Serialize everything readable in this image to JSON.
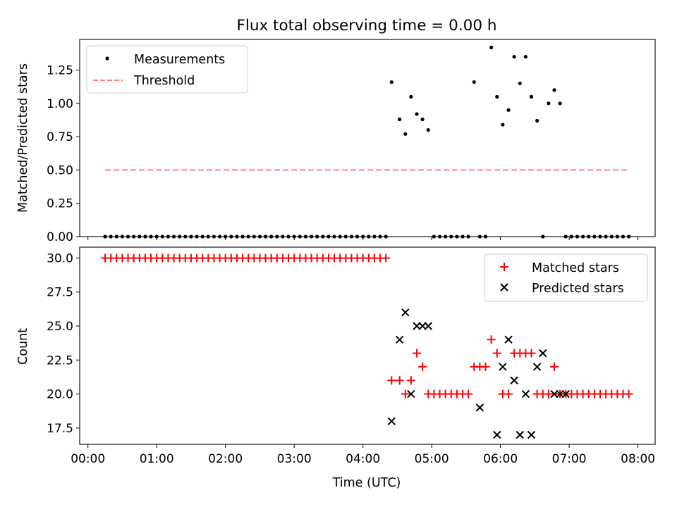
{
  "figure": {
    "title": "Flux total observing time = 0.00 h"
  },
  "chart_data": [
    {
      "type": "scatter",
      "xlabel": "",
      "ylabel": "Matched/Predicted stars",
      "ylim": [
        0,
        1.48
      ],
      "yticks": [
        0.0,
        0.25,
        0.5,
        0.75,
        1.0,
        1.25
      ],
      "ytick_labels": [
        "0.00",
        "0.25",
        "0.50",
        "0.75",
        "1.00",
        "1.25"
      ],
      "xlim_hours": [
        -0.12,
        8.25
      ],
      "xticks_hours": [
        0,
        1,
        2,
        3,
        4,
        5,
        6,
        7,
        8
      ],
      "xtick_labels": [
        "",
        "",
        "",
        "",
        "",
        "",
        "",
        "",
        ""
      ],
      "grid": false,
      "legend_position": "top-left",
      "series": [
        {
          "name": "Measurements",
          "kind": "points",
          "color": "#000000",
          "x": [
            "00:15",
            "00:20",
            "00:25",
            "00:30",
            "00:35",
            "00:40",
            "00:45",
            "00:50",
            "00:55",
            "01:00",
            "01:05",
            "01:10",
            "01:15",
            "01:20",
            "01:25",
            "01:30",
            "01:35",
            "01:40",
            "01:45",
            "01:50",
            "01:55",
            "02:00",
            "02:05",
            "02:10",
            "02:15",
            "02:20",
            "02:25",
            "02:30",
            "02:35",
            "02:40",
            "02:45",
            "02:50",
            "02:55",
            "03:00",
            "03:05",
            "03:10",
            "03:15",
            "03:20",
            "03:25",
            "03:30",
            "03:35",
            "03:40",
            "03:45",
            "03:50",
            "03:55",
            "04:00",
            "04:05",
            "04:10",
            "04:15",
            "04:20",
            "04:25",
            "04:32",
            "04:37",
            "04:42",
            "04:47",
            "04:52",
            "04:57",
            "05:02",
            "05:07",
            "05:12",
            "05:17",
            "05:22",
            "05:27",
            "05:32",
            "05:37",
            "05:42",
            "05:47",
            "05:52",
            "05:57",
            "06:02",
            "06:07",
            "06:12",
            "06:17",
            "06:22",
            "06:27",
            "06:32",
            "06:37",
            "06:42",
            "06:47",
            "06:52",
            "06:57",
            "07:02",
            "07:07",
            "07:12",
            "07:17",
            "07:22",
            "07:27",
            "07:32",
            "07:37",
            "07:42",
            "07:47",
            "07:52"
          ],
          "y": [
            0,
            0,
            0,
            0,
            0,
            0,
            0,
            0,
            0,
            0,
            0,
            0,
            0,
            0,
            0,
            0,
            0,
            0,
            0,
            0,
            0,
            0,
            0,
            0,
            0,
            0,
            0,
            0,
            0,
            0,
            0,
            0,
            0,
            0,
            0,
            0,
            0,
            0,
            0,
            0,
            0,
            0,
            0,
            0,
            0,
            0,
            0,
            0,
            0,
            0,
            1.16,
            0.88,
            0.77,
            1.05,
            0.92,
            0.88,
            0.8,
            0,
            0,
            0,
            0,
            0,
            0,
            0,
            1.16,
            0,
            0,
            1.42,
            1.05,
            0.84,
            0.95,
            1.35,
            1.15,
            1.35,
            1.05,
            0.87,
            0,
            1.0,
            1.1,
            1.0,
            0,
            0,
            0,
            0,
            0,
            0,
            0,
            0,
            0,
            0,
            0,
            0
          ]
        },
        {
          "name": "Threshold",
          "kind": "dashed-line",
          "color": "#ff8080",
          "x": [
            "00:15",
            "07:52"
          ],
          "y": [
            0.5,
            0.5
          ]
        }
      ]
    },
    {
      "type": "scatter",
      "xlabel": "Time (UTC)",
      "ylabel": "Count",
      "ylim": [
        16.3,
        30.8
      ],
      "yticks": [
        17.5,
        20.0,
        22.5,
        25.0,
        27.5,
        30.0
      ],
      "ytick_labels": [
        "17.5",
        "20.0",
        "22.5",
        "25.0",
        "27.5",
        "30.0"
      ],
      "xlim_hours": [
        -0.12,
        8.25
      ],
      "xticks_hours": [
        0,
        1,
        2,
        3,
        4,
        5,
        6,
        7,
        8
      ],
      "xtick_labels": [
        "00:00",
        "01:00",
        "02:00",
        "03:00",
        "04:00",
        "05:00",
        "06:00",
        "07:00",
        "08:00"
      ],
      "grid": false,
      "legend_position": "top-right",
      "series": [
        {
          "name": "Matched stars",
          "marker": "plus",
          "color": "#ff0000",
          "x": [
            "00:15",
            "00:20",
            "00:25",
            "00:30",
            "00:35",
            "00:40",
            "00:45",
            "00:50",
            "00:55",
            "01:00",
            "01:05",
            "01:10",
            "01:15",
            "01:20",
            "01:25",
            "01:30",
            "01:35",
            "01:40",
            "01:45",
            "01:50",
            "01:55",
            "02:00",
            "02:05",
            "02:10",
            "02:15",
            "02:20",
            "02:25",
            "02:30",
            "02:35",
            "02:40",
            "02:45",
            "02:50",
            "02:55",
            "03:00",
            "03:05",
            "03:10",
            "03:15",
            "03:20",
            "03:25",
            "03:30",
            "03:35",
            "03:40",
            "03:45",
            "03:50",
            "03:55",
            "04:00",
            "04:05",
            "04:10",
            "04:15",
            "04:20",
            "04:25",
            "04:32",
            "04:37",
            "04:42",
            "04:47",
            "04:52",
            "04:57",
            "05:02",
            "05:07",
            "05:12",
            "05:17",
            "05:22",
            "05:27",
            "05:32",
            "05:37",
            "05:42",
            "05:47",
            "05:52",
            "05:57",
            "06:02",
            "06:07",
            "06:12",
            "06:17",
            "06:22",
            "06:27",
            "06:32",
            "06:37",
            "06:42",
            "06:47",
            "06:52",
            "06:57",
            "07:02",
            "07:07",
            "07:12",
            "07:17",
            "07:22",
            "07:27",
            "07:32",
            "07:37",
            "07:42",
            "07:47",
            "07:52"
          ],
          "y": [
            30,
            30,
            30,
            30,
            30,
            30,
            30,
            30,
            30,
            30,
            30,
            30,
            30,
            30,
            30,
            30,
            30,
            30,
            30,
            30,
            30,
            30,
            30,
            30,
            30,
            30,
            30,
            30,
            30,
            30,
            30,
            30,
            30,
            30,
            30,
            30,
            30,
            30,
            30,
            30,
            30,
            30,
            30,
            30,
            30,
            30,
            30,
            30,
            30,
            30,
            21,
            21,
            20,
            21,
            23,
            22,
            20,
            20,
            20,
            20,
            20,
            20,
            20,
            20,
            22,
            22,
            22,
            24,
            23,
            20,
            20,
            23,
            23,
            23,
            23,
            20,
            20,
            20,
            22,
            20,
            20,
            20,
            20,
            20,
            20,
            20,
            20,
            20,
            20,
            20,
            20,
            20
          ]
        },
        {
          "name": "Predicted stars",
          "marker": "cross",
          "color": "#000000",
          "x": [
            "04:25",
            "04:32",
            "04:37",
            "04:42",
            "04:47",
            "04:52",
            "04:57",
            "05:42",
            "05:57",
            "06:02",
            "06:07",
            "06:12",
            "06:17",
            "06:22",
            "06:27",
            "06:32",
            "06:37",
            "06:47",
            "06:52",
            "06:57"
          ],
          "y": [
            18,
            24,
            26,
            20,
            25,
            25,
            25,
            19,
            17,
            22,
            24,
            21,
            17,
            20,
            17,
            22,
            23,
            20,
            20,
            20
          ]
        }
      ]
    }
  ]
}
